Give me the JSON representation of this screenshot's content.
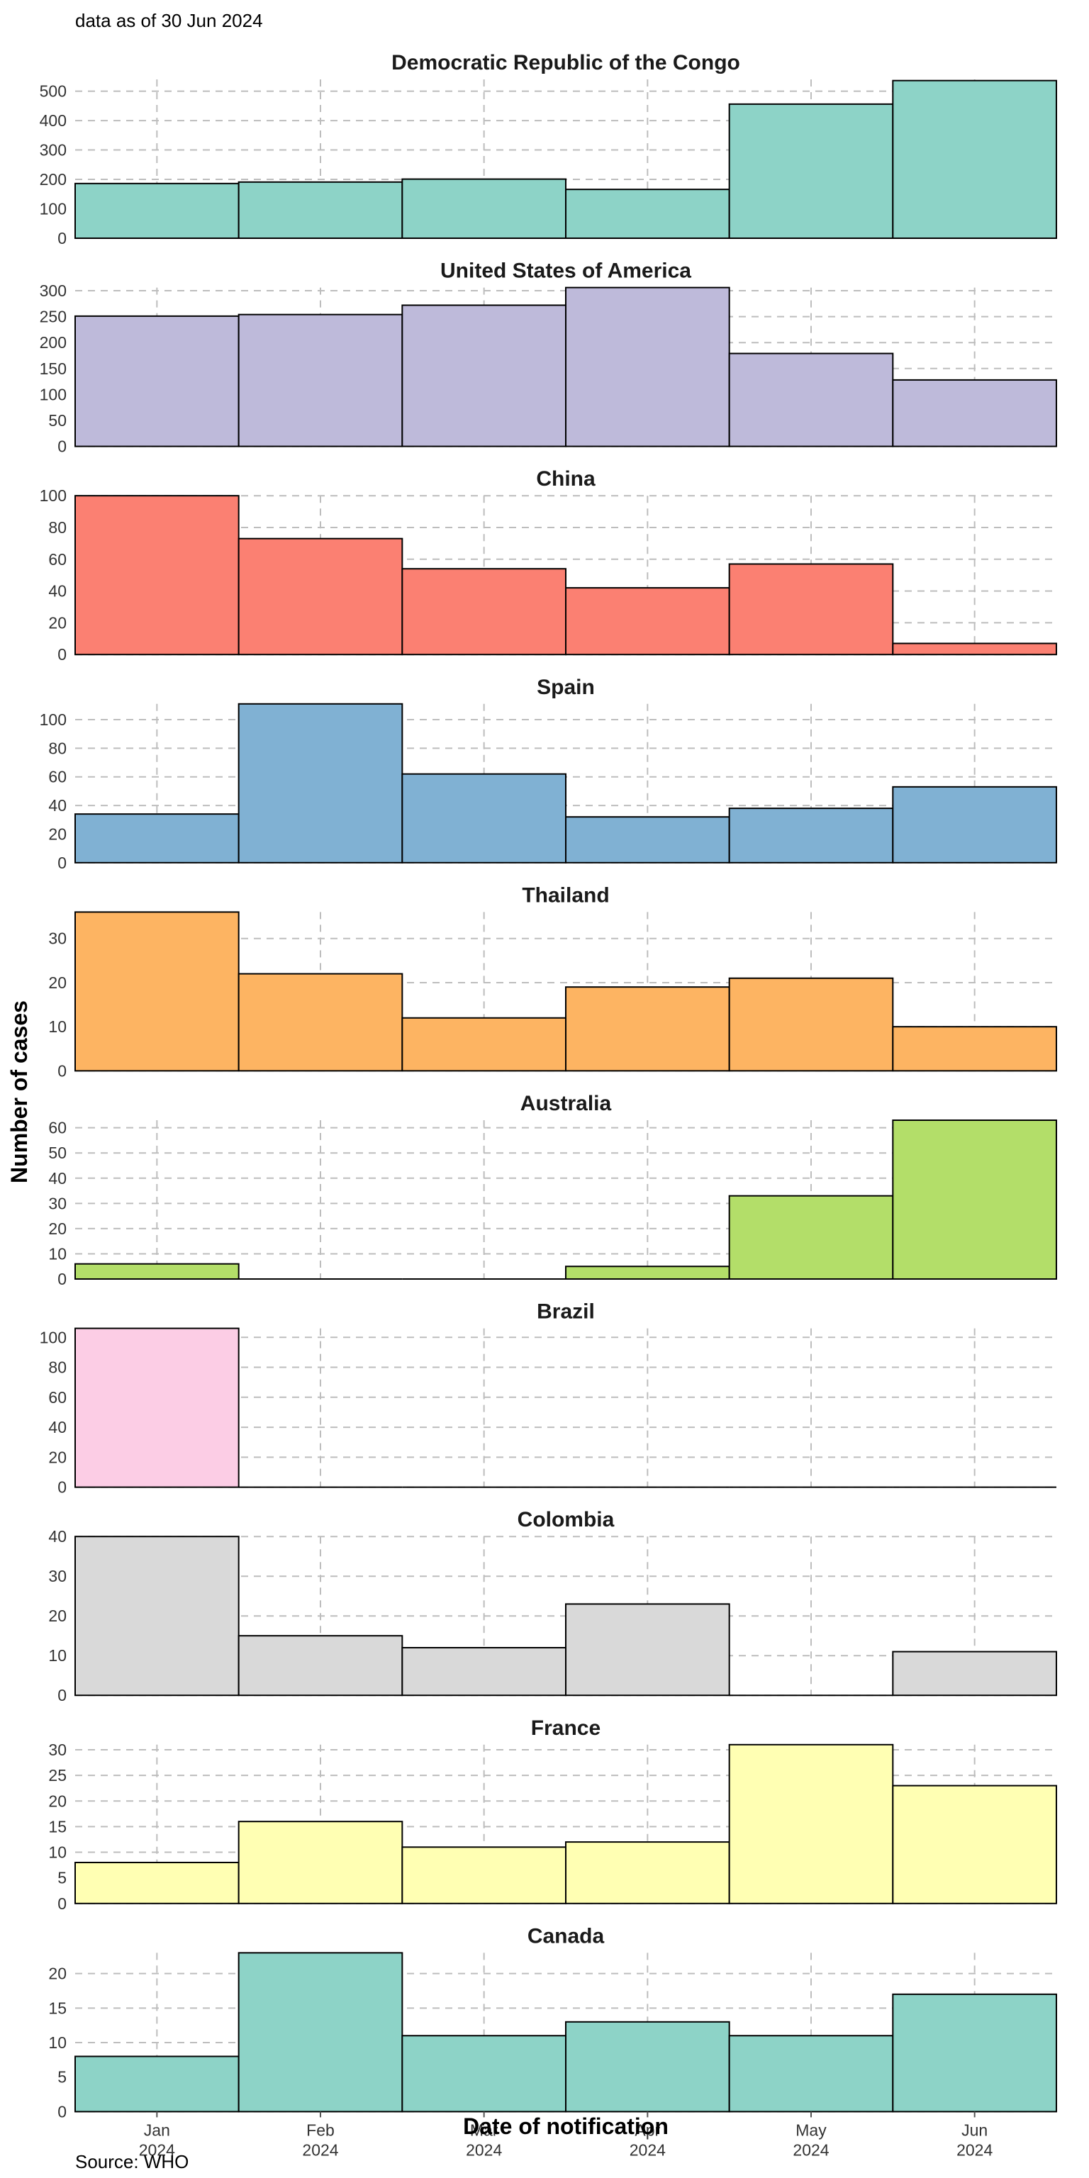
{
  "subtitle": "data as of 30 Jun 2024",
  "caption": "Source: WHO",
  "ylabel": "Number of cases",
  "xlabel": "Date of notification",
  "x_ticks": [
    {
      "month": "Jan",
      "year": "2024"
    },
    {
      "month": "Feb",
      "year": "2024"
    },
    {
      "month": "Mar",
      "year": "2024"
    },
    {
      "month": "Apr",
      "year": "2024"
    },
    {
      "month": "May",
      "year": "2024"
    },
    {
      "month": "Jun",
      "year": "2024"
    }
  ],
  "chart_data": {
    "type": "bar",
    "layout": "small-multiples",
    "grid": true,
    "categories": [
      "2024-01",
      "2024-02",
      "2024-03",
      "2024-04",
      "2024-05",
      "2024-06"
    ],
    "panels": [
      {
        "title": "Democratic Republic of the Congo",
        "color": "#8DD3C7",
        "values": [
          186,
          191,
          201,
          166,
          456,
          536
        ],
        "ylim": [
          0,
          540
        ],
        "yticks": [
          0,
          100,
          200,
          300,
          400,
          500
        ]
      },
      {
        "title": "United States of America",
        "color": "#BEBADA",
        "values": [
          251,
          254,
          272,
          306,
          179,
          128
        ],
        "ylim": [
          0,
          306
        ],
        "yticks": [
          0,
          50,
          100,
          150,
          200,
          250,
          300
        ]
      },
      {
        "title": "China",
        "color": "#FB8072",
        "values": [
          100,
          73,
          54,
          42,
          57,
          7
        ],
        "ylim": [
          0,
          100
        ],
        "yticks": [
          0,
          20,
          40,
          60,
          80,
          100
        ]
      },
      {
        "title": "Spain",
        "color": "#80B1D3",
        "values": [
          34,
          111,
          62,
          32,
          38,
          53
        ],
        "ylim": [
          0,
          111
        ],
        "yticks": [
          0,
          20,
          40,
          60,
          80,
          100
        ]
      },
      {
        "title": "Thailand",
        "color": "#FDB462",
        "values": [
          36,
          22,
          12,
          19,
          21,
          10
        ],
        "ylim": [
          0,
          36
        ],
        "yticks": [
          0,
          10,
          20,
          30
        ]
      },
      {
        "title": "Australia",
        "color": "#B3DE69",
        "values": [
          6,
          0,
          0,
          5,
          33,
          63
        ],
        "ylim": [
          0,
          63
        ],
        "yticks": [
          0,
          10,
          20,
          30,
          40,
          50,
          60
        ]
      },
      {
        "title": "Brazil",
        "color": "#FCCDE5",
        "values": [
          106,
          0,
          0,
          0,
          0,
          0
        ],
        "ylim": [
          0,
          106
        ],
        "yticks": [
          0,
          20,
          40,
          60,
          80,
          100
        ]
      },
      {
        "title": "Colombia",
        "color": "#D9D9D9",
        "values": [
          40,
          15,
          12,
          23,
          0,
          11
        ],
        "ylim": [
          0,
          40
        ],
        "yticks": [
          0,
          10,
          20,
          30,
          40
        ]
      },
      {
        "title": "France",
        "color": "#FFFFB3",
        "values": [
          8,
          16,
          11,
          12,
          31,
          23
        ],
        "ylim": [
          0,
          31
        ],
        "yticks": [
          0,
          5,
          10,
          15,
          20,
          25,
          30
        ]
      },
      {
        "title": "Canada",
        "color": "#8DD3C7",
        "values": [
          8,
          23,
          11,
          13,
          11,
          17
        ],
        "ylim": [
          0,
          23
        ],
        "yticks": [
          0,
          5,
          10,
          15,
          20
        ]
      }
    ]
  }
}
